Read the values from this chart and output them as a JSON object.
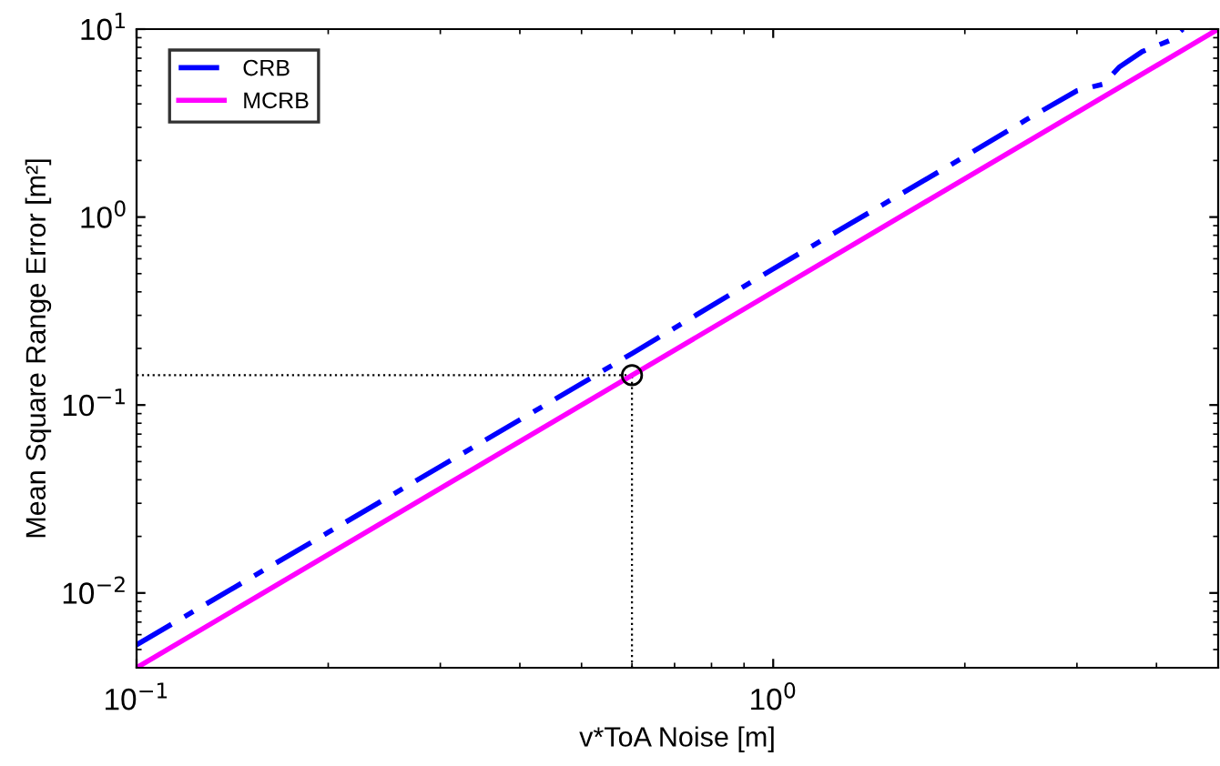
{
  "chart_data": {
    "type": "line",
    "log": "xy",
    "xlabel": "v*ToA Noise [m]",
    "ylabel": "Mean Square Range Error [m²]",
    "xlim": [
      0.1,
      5
    ],
    "ylim": [
      0.004,
      10
    ],
    "xticks": [
      {
        "value": 0.1,
        "label": "10$^{−1}$"
      },
      {
        "value": 1,
        "label": "10$^{0}$"
      }
    ],
    "yticks": [
      {
        "value": 0.01,
        "label": "10$^{−2}$"
      },
      {
        "value": 0.1,
        "label": "10$^{−1}$"
      },
      {
        "value": 1,
        "label": "10$^{0}$"
      },
      {
        "value": 10,
        "label": "10$^{1}$"
      }
    ],
    "grid": false,
    "legend": "top left",
    "series": [
      {
        "name": "CRB",
        "color": "#0000ff",
        "line_style": "dashdot",
        "marker": "none",
        "x": [
          0.1,
          0.2,
          0.5,
          0.6,
          1,
          2,
          2.5,
          3,
          3.3,
          3.5,
          3.8,
          4.2,
          4.4
        ],
        "values": [
          0.0053,
          0.021,
          0.13,
          0.188,
          0.53,
          2.1,
          3.3,
          4.7,
          5.1,
          6.3,
          7.6,
          8.7,
          10
        ]
      },
      {
        "name": "MCRB",
        "color": "#ff00ff",
        "line_style": "solid",
        "marker": "none",
        "x": [
          0.1,
          5
        ],
        "values": [
          0.004,
          10
        ]
      },
      {
        "type": "scatter",
        "color": "#000000",
        "marker": "circle",
        "x": [
          0.6
        ],
        "values": [
          0.144
        ]
      }
    ],
    "ref_lines": [
      {
        "axis": "x",
        "value": 0.6,
        "color": "#000000",
        "line_style": "dotted"
      },
      {
        "axis": "y",
        "value": 0.144,
        "color": "#000000",
        "line_style": "dotted"
      }
    ]
  }
}
